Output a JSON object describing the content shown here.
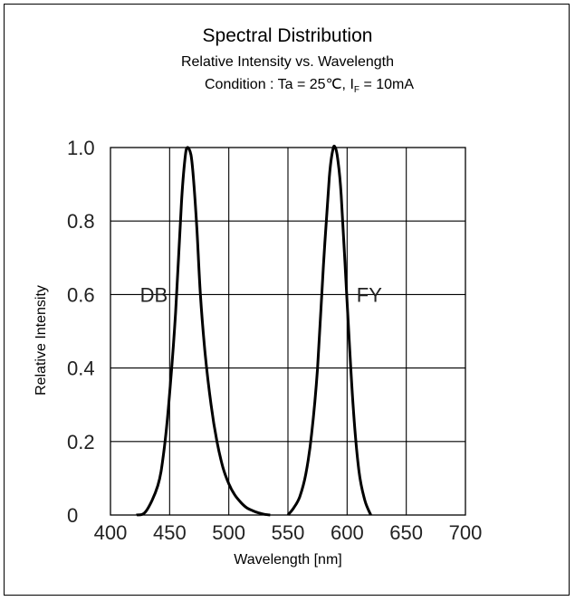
{
  "chart_data": {
    "type": "line",
    "title": "Spectral Distribution",
    "subtitle": "Relative Intensity vs. Wavelength",
    "condition": {
      "prefix": "Condition : Ta = 25℃, I",
      "subscript": "F",
      "suffix": " = 10mA"
    },
    "xlabel": "Wavelength [nm]",
    "ylabel": "Relative Intensity",
    "xlim": [
      400,
      700
    ],
    "ylim": [
      0,
      1.0
    ],
    "grid": true,
    "x_ticks": [
      400,
      450,
      500,
      550,
      600,
      650,
      700
    ],
    "x_tick_labels": [
      "400",
      "450",
      "500",
      "550",
      "600",
      "650",
      "700"
    ],
    "y_ticks": [
      0,
      0.2,
      0.4,
      0.6,
      0.8,
      1.0
    ],
    "y_tick_labels": [
      "0",
      "0.2",
      "0.4",
      "0.6",
      "0.8",
      "1.0"
    ],
    "series": [
      {
        "name": "DB",
        "label_position": {
          "x": 425,
          "y": 0.6
        },
        "x": [
          422,
          430,
          440,
          445,
          450,
          455,
          460,
          463,
          465,
          468,
          470,
          473,
          476,
          480,
          485,
          490,
          495,
          500,
          505,
          510,
          515,
          520,
          525,
          530,
          535
        ],
        "y": [
          0.0,
          0.01,
          0.08,
          0.17,
          0.33,
          0.55,
          0.85,
          0.97,
          1.0,
          0.98,
          0.92,
          0.78,
          0.6,
          0.44,
          0.3,
          0.2,
          0.13,
          0.085,
          0.055,
          0.035,
          0.02,
          0.012,
          0.006,
          0.002,
          0.0
        ]
      },
      {
        "name": "FY",
        "label_position": {
          "x": 608,
          "y": 0.6
        },
        "x": [
          550,
          555,
          560,
          565,
          570,
          575,
          580,
          585,
          588,
          590,
          592,
          595,
          600,
          605,
          610,
          615,
          620
        ],
        "y": [
          0.0,
          0.02,
          0.05,
          0.11,
          0.22,
          0.4,
          0.68,
          0.92,
          0.995,
          1.0,
          0.97,
          0.87,
          0.58,
          0.3,
          0.12,
          0.04,
          0.0
        ]
      }
    ],
    "line_color": "#000000",
    "grid_color": "#000000"
  }
}
